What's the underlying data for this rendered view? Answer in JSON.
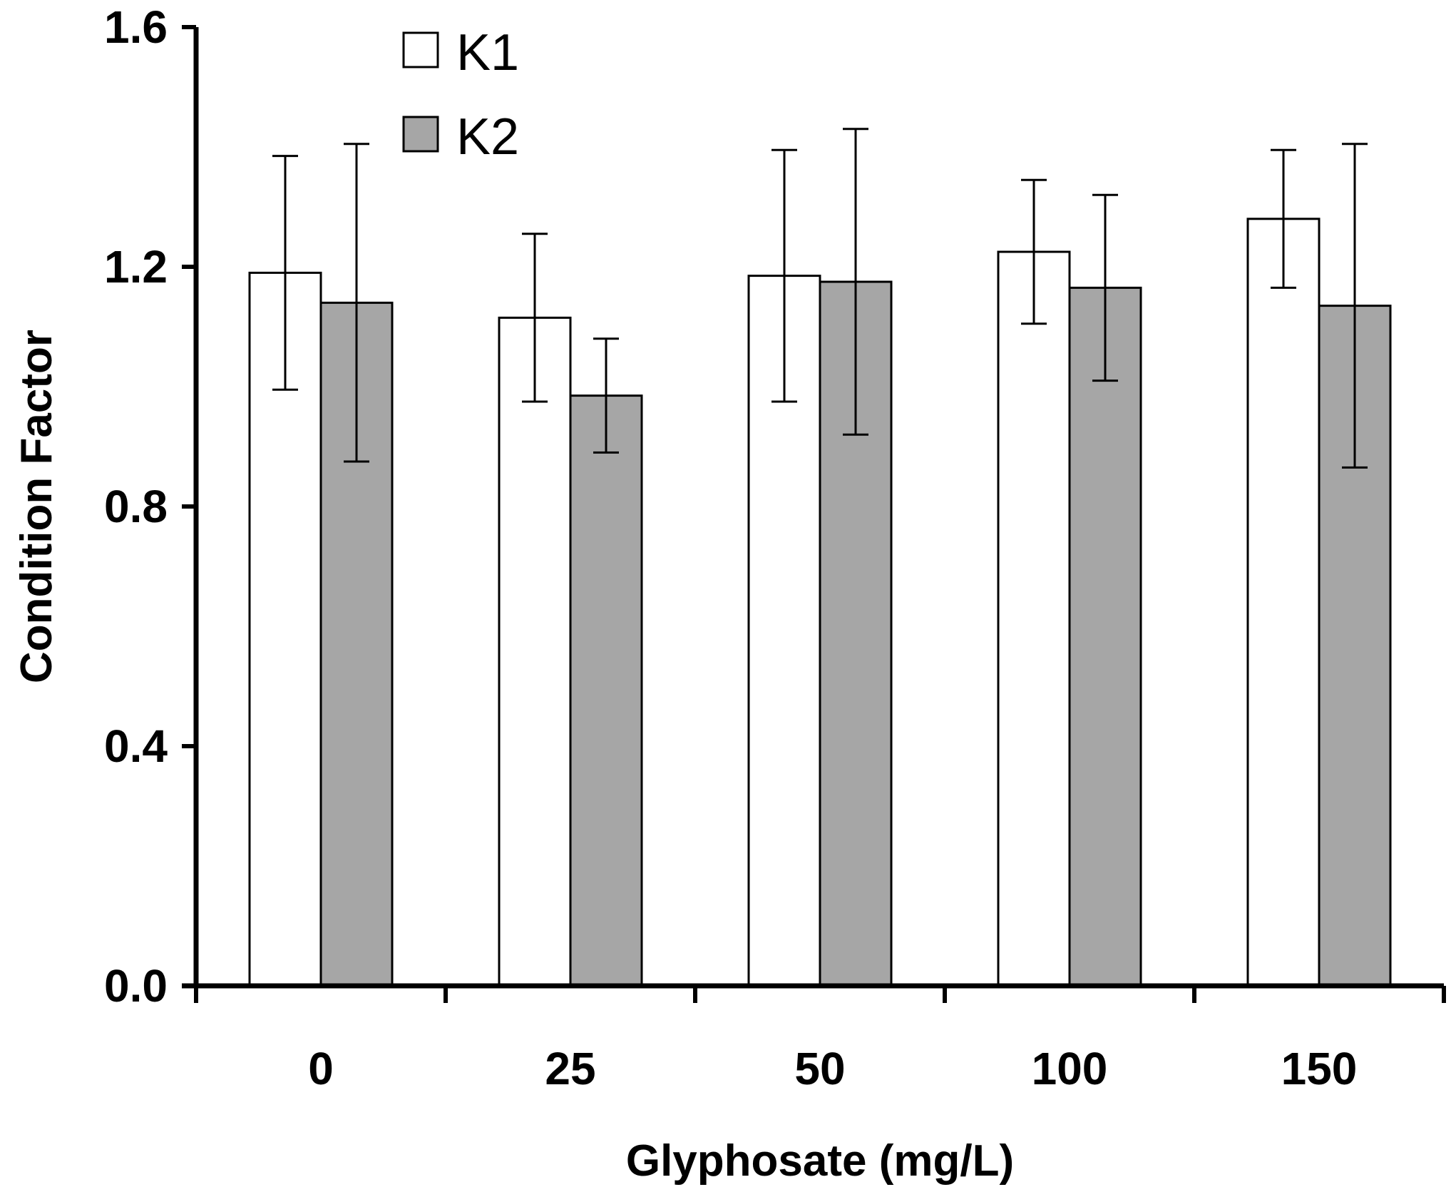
{
  "chart_data": {
    "type": "bar",
    "title": "",
    "xlabel": "Glyphosate (mg/L)",
    "ylabel": "Condition Factor",
    "categories": [
      "0",
      "25",
      "50",
      "100",
      "150"
    ],
    "ylim": [
      0,
      1.6
    ],
    "yticks": [
      "0.0",
      "0.4",
      "0.8",
      "1.2",
      "1.6"
    ],
    "legend_position": "top-left",
    "series": [
      {
        "name": "K1",
        "color": "#ffffff",
        "values": [
          1.19,
          1.115,
          1.185,
          1.225,
          1.28
        ],
        "errors": [
          0.195,
          0.14,
          0.21,
          0.12,
          0.115
        ]
      },
      {
        "name": "K2",
        "color": "#a6a6a6",
        "values": [
          1.14,
          0.985,
          1.175,
          1.165,
          1.135
        ],
        "errors": [
          0.265,
          0.095,
          0.255,
          0.155,
          0.27
        ]
      }
    ]
  }
}
